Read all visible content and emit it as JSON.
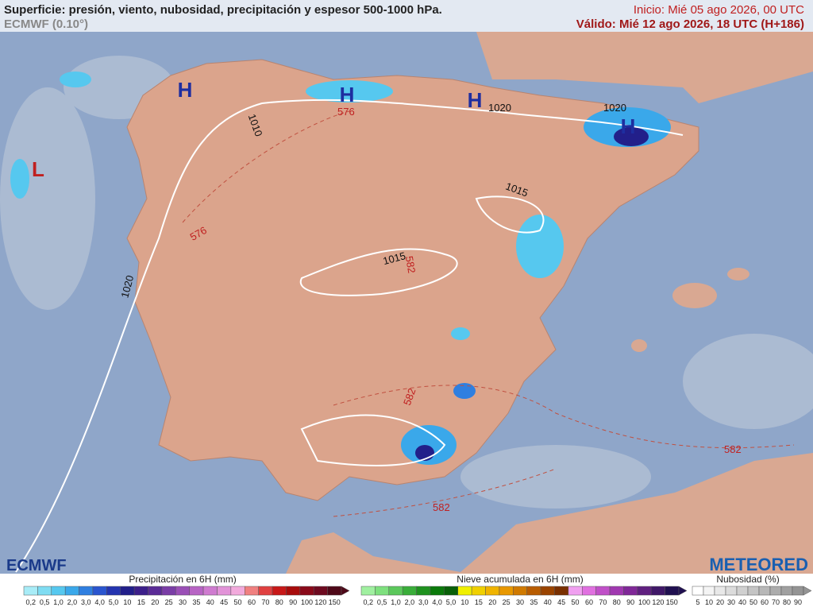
{
  "header": {
    "title": "Superficie: presión, viento, nubosidad, precipitación y espesor 500-1000 hPa.",
    "model": "ECMWF (0.10°)",
    "init": "Inicio: Mié 05 ago 2026, 00 UTC",
    "valid": "Válido: Mié 12 ago 2026, 18 UTC (H+186)"
  },
  "map": {
    "pressure_centers": [
      "H",
      "H",
      "H",
      "H",
      "L"
    ],
    "isobars": [
      1010,
      1020,
      1015,
      1020,
      1015,
      1020
    ],
    "thickness": [
      576,
      576,
      582,
      582,
      582,
      582
    ]
  },
  "logos": {
    "left": "ECMWF",
    "right": "METEORED"
  },
  "legend": {
    "precipitation": {
      "title": "Precipitación en 6H (mm)",
      "labels": [
        "0,2",
        "0,5",
        "1,0",
        "2,0",
        "3,0",
        "4,0",
        "5,0",
        "10",
        "15",
        "20",
        "25",
        "30",
        "35",
        "40",
        "45",
        "50",
        "60",
        "70",
        "80",
        "90",
        "100",
        "120",
        "150"
      ],
      "colors": [
        "#a8ecf7",
        "#7fdcf2",
        "#56c8ef",
        "#3aa8ea",
        "#2f7fe0",
        "#2a55cf",
        "#2434b0",
        "#221f8a",
        "#3c1f8a",
        "#5a2b96",
        "#7a3da6",
        "#9a4fb6",
        "#b764c4",
        "#cf7bd0",
        "#e293d8",
        "#f2aadc",
        "#f08080",
        "#e04040",
        "#c81818",
        "#a80c0c",
        "#8a0a1a",
        "#6e0a20",
        "#4e0818"
      ]
    },
    "snow": {
      "title": "Nieve acumulada en 6H (mm)",
      "labels": [
        "0,2",
        "0,5",
        "1,0",
        "2,0",
        "3,0",
        "4,0",
        "5,0",
        "10",
        "15",
        "20",
        "25",
        "30",
        "35",
        "40",
        "45",
        "50",
        "60",
        "70",
        "80",
        "90",
        "100",
        "120",
        "150"
      ],
      "colors": [
        "#a0f0a0",
        "#7ee07e",
        "#5cc85c",
        "#3aae3a",
        "#1f921f",
        "#0a7a0a",
        "#086008",
        "#f0f000",
        "#f0d000",
        "#f0b400",
        "#e89800",
        "#d07a00",
        "#b85c00",
        "#9a4400",
        "#7a3000",
        "#f0a0f0",
        "#e070e0",
        "#c050c8",
        "#a038b0",
        "#802898",
        "#602080",
        "#401868",
        "#201050"
      ]
    },
    "cloud": {
      "title": "Nubosidad (%)",
      "labels": [
        "5",
        "10",
        "20",
        "30",
        "40",
        "50",
        "60",
        "70",
        "80",
        "90"
      ],
      "colors": [
        "#ffffff",
        "#f4f4f4",
        "#e8e8e8",
        "#dcdcdc",
        "#d0d0d0",
        "#c4c4c4",
        "#b8b8b8",
        "#acacac",
        "#a0a0a0",
        "#949494"
      ]
    }
  }
}
